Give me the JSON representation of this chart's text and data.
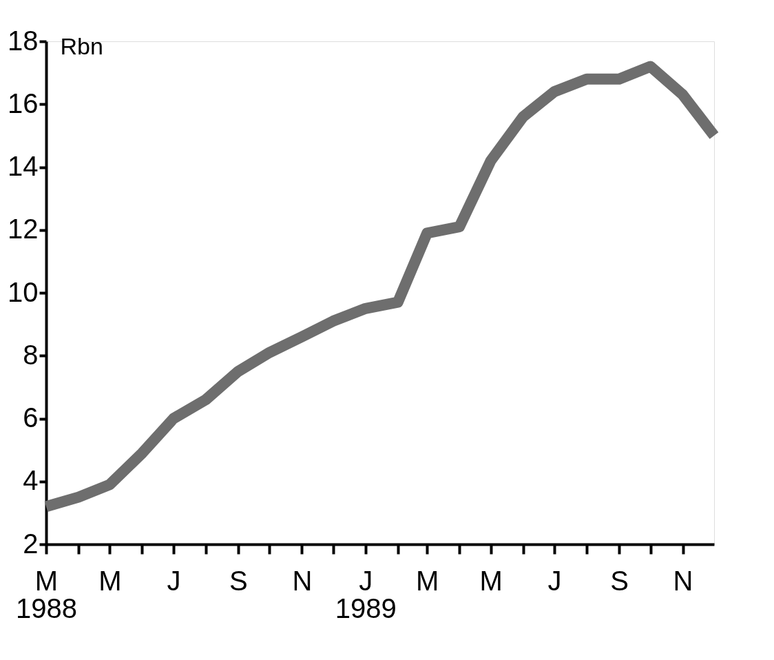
{
  "chart_data": {
    "type": "line",
    "ylabel": "Rbn",
    "x": [
      "1988-03",
      "1988-04",
      "1988-05",
      "1988-06",
      "1988-07",
      "1988-08",
      "1988-09",
      "1988-10",
      "1988-11",
      "1988-12",
      "1989-01",
      "1989-02",
      "1989-03",
      "1989-04",
      "1989-05",
      "1989-06",
      "1989-07",
      "1989-08",
      "1989-09",
      "1989-10",
      "1989-11",
      "1989-12"
    ],
    "series": [
      {
        "color": "#6e6e6e",
        "values": [
          3.2,
          3.5,
          3.9,
          4.9,
          6.0,
          6.6,
          7.5,
          8.1,
          8.6,
          9.1,
          9.5,
          9.7,
          11.9,
          12.1,
          14.2,
          15.6,
          16.4,
          16.8,
          16.8,
          17.2,
          16.3,
          15.0
        ]
      }
    ],
    "xlim": [
      "1988-03",
      "1989-12"
    ],
    "xticks": [
      {
        "value": "1988-03",
        "label": "M\n1988"
      },
      {
        "value": "1988-04",
        "label": null
      },
      {
        "value": "1988-05",
        "label": "M"
      },
      {
        "value": "1988-06",
        "label": null
      },
      {
        "value": "1988-07",
        "label": "J"
      },
      {
        "value": "1988-08",
        "label": null
      },
      {
        "value": "1988-09",
        "label": "S"
      },
      {
        "value": "1988-10",
        "label": null
      },
      {
        "value": "1988-11",
        "label": "N"
      },
      {
        "value": "1988-12",
        "label": null
      },
      {
        "value": "1989-01",
        "label": "J\n1989"
      },
      {
        "value": "1989-02",
        "label": null
      },
      {
        "value": "1989-03",
        "label": "M"
      },
      {
        "value": "1989-04",
        "label": null
      },
      {
        "value": "1989-05",
        "label": "M"
      },
      {
        "value": "1989-06",
        "label": null
      },
      {
        "value": "1989-07",
        "label": "J"
      },
      {
        "value": "1989-08",
        "label": null
      },
      {
        "value": "1989-09",
        "label": "S"
      },
      {
        "value": "1989-10",
        "label": null
      },
      {
        "value": "1989-11",
        "label": "N"
      }
    ],
    "ylim": [
      2,
      18
    ],
    "yticks": [
      2,
      4,
      6,
      8,
      10,
      12,
      14,
      16,
      18
    ],
    "grid": false,
    "marker": "none",
    "line_style": "solid"
  }
}
